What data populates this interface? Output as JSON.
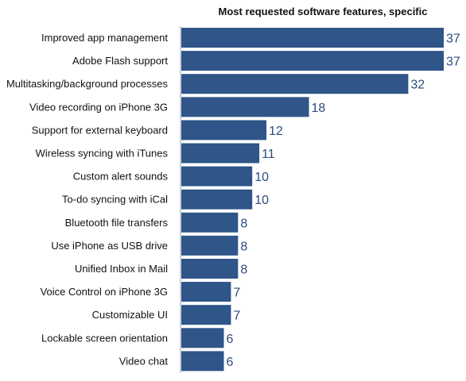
{
  "chart_data": {
    "type": "bar",
    "orientation": "horizontal",
    "title": "Most requested software features, specific",
    "categories": [
      "Improved app management",
      "Adobe Flash support",
      "Multitasking/background processes",
      "Video recording on iPhone 3G",
      "Support for external keyboard",
      "Wireless syncing with iTunes",
      "Custom alert sounds",
      "To-do syncing with iCal",
      "Bluetooth file transfers",
      "Use iPhone as USB drive",
      "Unified Inbox in Mail",
      "Voice Control on iPhone 3G",
      "Customizable UI",
      "Lockable screen orientation",
      "Video chat"
    ],
    "values": [
      37,
      37,
      32,
      18,
      12,
      11,
      10,
      10,
      8,
      8,
      8,
      7,
      7,
      6,
      6
    ],
    "xlim": [
      0,
      37
    ],
    "grid": false,
    "bar_color": "#2f5589",
    "value_label_color": "#2c4b7f"
  }
}
